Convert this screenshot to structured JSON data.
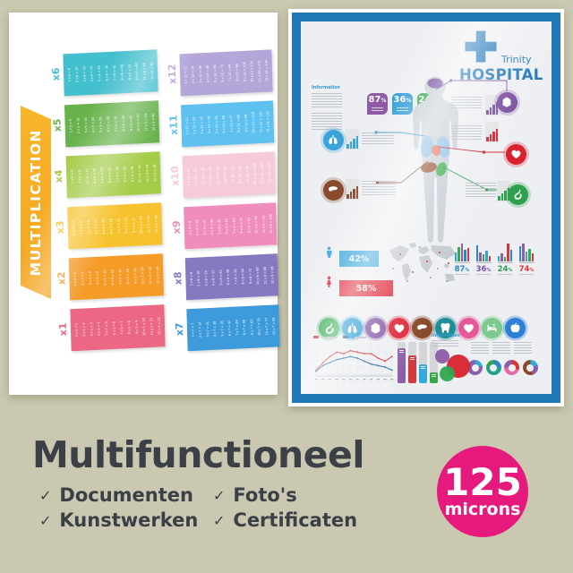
{
  "page": {
    "background": "#cac8b0"
  },
  "left_poster": {
    "title": "MULTIPLICATION",
    "banner_color": "#f5a31f",
    "tables": [
      {
        "label": "x6",
        "color": "#44bfce",
        "equations": [
          "1 x 6 = 6",
          "2 x 6 = 12",
          "3 x 6 = 18",
          "4 x 6 = 24",
          "5 x 6 = 30",
          "6 x 6 = 36",
          "7 x 6 = 42",
          "8 x 6 = 48",
          "9 x 6 = 54",
          "10 x 6 = 60",
          "11 x 6 = 66",
          "12 x 6 = 72"
        ]
      },
      {
        "label": "x5",
        "color": "#68b24c",
        "equations": [
          "1 x 5 = 5",
          "2 x 5 = 10",
          "3 x 5 = 15",
          "4 x 5 = 20",
          "5 x 5 = 25",
          "6 x 5 = 30",
          "7 x 5 = 35",
          "8 x 5 = 40",
          "9 x 5 = 45",
          "10 x 5 = 50",
          "11 x 5 = 55",
          "12 x 5 = 60"
        ]
      },
      {
        "label": "x4",
        "color": "#a5cc49",
        "equations": [
          "1 x 4 = 4",
          "2 x 4 = 8",
          "3 x 4 = 12",
          "4 x 4 = 16",
          "5 x 4 = 20",
          "6 x 4 = 24",
          "7 x 4 = 28",
          "8 x 4 = 32",
          "9 x 4 = 36",
          "10 x 4 = 40",
          "11 x 4 = 44",
          "12 x 4 = 48"
        ]
      },
      {
        "label": "x3",
        "color": "#f6c32e",
        "equations": [
          "1 x 3 = 3",
          "2 x 3 = 6",
          "3 x 3 = 9",
          "4 x 3 = 12",
          "5 x 3 = 15",
          "6 x 3 = 18",
          "7 x 3 = 21",
          "8 x 3 = 24",
          "9 x 3 = 27",
          "10 x 3 = 30",
          "11 x 3 = 33",
          "12 x 3 = 36"
        ]
      },
      {
        "label": "x2",
        "color": "#f49b28",
        "equations": [
          "1 x 2 = 2",
          "2 x 2 = 4",
          "3 x 2 = 6",
          "4 x 2 = 8",
          "5 x 2 = 10",
          "6 x 2 = 12",
          "7 x 2 = 14",
          "8 x 2 = 16",
          "9 x 2 = 18",
          "10 x 2 = 20",
          "11 x 2 = 22",
          "12 x 2 = 24"
        ]
      },
      {
        "label": "x1",
        "color": "#eb6783",
        "equations": [
          "1 x 1 = 1",
          "2 x 1 = 2",
          "3 x 1 = 3",
          "4 x 1 = 4",
          "5 x 1 = 5",
          "6 x 1 = 6",
          "7 x 1 = 7",
          "8 x 1 = 8",
          "9 x 1 = 9",
          "10 x 1 = 10",
          "11 x 1 = 11",
          "12 x 1 = 12"
        ]
      },
      {
        "label": "x12",
        "color": "#b4a6d9",
        "equations": [
          "1 x 12 = 12",
          "2 x 12 = 24",
          "3 x 12 = 36",
          "4 x 12 = 48",
          "5 x 12 = 60",
          "6 x 12 = 72",
          "7 x 12 = 84",
          "8 x 12 = 96",
          "9 x 12 = 108",
          "10 x 12 = 120",
          "11 x 12 = 132",
          "12 x 12 = 144"
        ]
      },
      {
        "label": "x11",
        "color": "#5fc1ef",
        "equations": [
          "1 x 11 = 11",
          "2 x 11 = 22",
          "3 x 11 = 33",
          "4 x 11 = 44",
          "5 x 11 = 55",
          "6 x 11 = 66",
          "7 x 11 = 77",
          "8 x 11 = 88",
          "9 x 11 = 99",
          "10 x 11 = 110",
          "11 x 11 = 121",
          "12 x 11 = 132"
        ]
      },
      {
        "label": "x10",
        "color": "#f6cada",
        "equations": [
          "1 x 10 = 10",
          "2 x 10 = 20",
          "3 x 10 = 30",
          "4 x 10 = 40",
          "5 x 10 = 50",
          "6 x 10 = 60",
          "7 x 10 = 70",
          "8 x 10 = 80",
          "9 x 10 = 90",
          "10 x 10 = 100",
          "11 x 10 = 110",
          "12 x 10 = 120"
        ]
      },
      {
        "label": "x9",
        "color": "#f18cbe",
        "equations": [
          "1 x 9 = 9",
          "2 x 9 = 18",
          "3 x 9 = 27",
          "4 x 9 = 36",
          "5 x 9 = 45",
          "6 x 9 = 54",
          "7 x 9 = 63",
          "8 x 9 = 72",
          "9 x 9 = 81",
          "10 x 9 = 90",
          "11 x 9 = 99",
          "12 x 9 = 108"
        ]
      },
      {
        "label": "x8",
        "color": "#8679c2",
        "equations": [
          "1 x 8 = 8",
          "2 x 8 = 16",
          "3 x 8 = 24",
          "4 x 8 = 32",
          "5 x 8 = 40",
          "6 x 8 = 48",
          "7 x 8 = 56",
          "8 x 8 = 64",
          "9 x 8 = 72",
          "10 x 8 = 80",
          "11 x 8 = 88",
          "12 x 8 = 96"
        ]
      },
      {
        "label": "x7",
        "color": "#3d9bdb",
        "equations": [
          "1 x 7 = 7",
          "2 x 7 = 14",
          "3 x 7 = 21",
          "4 x 7 = 28",
          "5 x 7 = 35",
          "6 x 7 = 42",
          "7 x 7 = 49",
          "8 x 7 = 56",
          "9 x 7 = 63",
          "10 x 7 = 70",
          "11 x 7 = 77",
          "12 x 7 = 84"
        ]
      }
    ]
  },
  "right_poster": {
    "brand": {
      "name": "Trinity",
      "type": "HOSPITAL",
      "color": "#2379ba"
    },
    "info_heading": "Information",
    "stat_badges": [
      {
        "value": "87",
        "unit": "%",
        "color": "#8e5aa6"
      },
      {
        "value": "36",
        "unit": "%",
        "color": "#3ba0d8"
      },
      {
        "value": "24",
        "unit": "%",
        "color": "#33a84a"
      }
    ],
    "gender": [
      {
        "icon": "male",
        "value": "42%",
        "color": "#3fa9dc"
      },
      {
        "icon": "female",
        "value": "58%",
        "color": "#e02b3d"
      }
    ],
    "bar_groups": [
      {
        "value": "87",
        "unit": "%",
        "color": "#2e86c6",
        "bars": [
          10,
          16,
          20,
          13,
          15
        ],
        "bar_colors": [
          "#3aa0d8",
          "#37a94c",
          "#8e5ca8",
          "#2e86c6",
          "#d3393f"
        ]
      },
      {
        "value": "36",
        "unit": "%",
        "color": "#7a55a5",
        "bars": [
          18,
          10,
          8,
          12,
          6
        ],
        "bar_colors": [
          "#2e86c6",
          "#8e5ca8",
          "#37a94c",
          "#3aa0d8",
          "#d3393f"
        ]
      },
      {
        "value": "24",
        "unit": "%",
        "color": "#2fa052",
        "bars": [
          6,
          9,
          5,
          20,
          13
        ],
        "bar_colors": [
          "#3aa0d8",
          "#8e5ca8",
          "#37a94c",
          "#d3393f",
          "#2e86c6"
        ]
      },
      {
        "value": "74",
        "unit": "%",
        "color": "#d3393f",
        "bars": [
          17,
          20,
          11,
          14,
          9
        ],
        "bar_colors": [
          "#2e86c6",
          "#8e5ca8",
          "#3aa0d8",
          "#37a94c",
          "#d3393f"
        ]
      }
    ],
    "organ_callouts": [
      {
        "organ": "lungs",
        "color": "#3aa3dc"
      },
      {
        "organ": "liver",
        "color": "#8a4a2e"
      },
      {
        "organ": "brain",
        "color": "#7a4fa0"
      },
      {
        "organ": "heart-organ",
        "color": "#d8232f"
      },
      {
        "organ": "stomach",
        "color": "#2ea14f"
      }
    ],
    "organ_icons": [
      {
        "name": "stomach",
        "color": "#2fa84f"
      },
      {
        "name": "lungs",
        "color": "#2e9fd4"
      },
      {
        "name": "brain",
        "color": "#8b5fa8"
      },
      {
        "name": "heart-organ",
        "color": "#de2638"
      },
      {
        "name": "liver",
        "color": "#8a4a2c"
      },
      {
        "name": "tooth",
        "color": "#1f8f95"
      },
      {
        "name": "heart",
        "color": "#e45898"
      },
      {
        "name": "bed",
        "color": "#7dc98f"
      },
      {
        "name": "apple",
        "color": "#2b7fd4"
      }
    ],
    "progress_bars": [
      {
        "color": "#8b5fa8",
        "pct": 0.85
      },
      {
        "color": "#d3393f",
        "pct": 0.68
      },
      {
        "color": "#35a8dc",
        "pct": 0.46
      },
      {
        "color": "#37a94c",
        "pct": 0.27
      }
    ],
    "bubbles": [
      "#8e5ca8",
      "#d8232f",
      "#2fa84f"
    ],
    "donuts": [
      {
        "segments": [
          {
            "color": "#35a8dc",
            "pct": 22
          },
          {
            "color": "#8b5fa8",
            "pct": 78
          }
        ]
      },
      {
        "segments": [
          {
            "color": "#2e86c6",
            "pct": 24
          },
          {
            "color": "#23a08c",
            "pct": 56
          },
          {
            "color": "#2fa84f",
            "pct": 20
          }
        ]
      },
      {
        "segments": [
          {
            "color": "#d3393f",
            "pct": 30
          },
          {
            "color": "#e868a8",
            "pct": 45
          },
          {
            "color": "#8b5fa8",
            "pct": 25
          }
        ]
      },
      {
        "segments": [
          {
            "color": "#35a8dc",
            "pct": 20
          },
          {
            "color": "#8b5fa8",
            "pct": 25
          },
          {
            "color": "#8a4a2c",
            "pct": 55
          }
        ]
      }
    ],
    "line_chart": {
      "series": [
        {
          "color": "#d3393f",
          "values": [
            4,
            9,
            13,
            16,
            15,
            17,
            16,
            15,
            15,
            12,
            10,
            13
          ]
        },
        {
          "color": "#2e6da4",
          "values": [
            3,
            7,
            9,
            11,
            12,
            13,
            12,
            10,
            8,
            7,
            6,
            4
          ]
        }
      ]
    }
  },
  "footer": {
    "title": "Multifunctioneel",
    "features": [
      "Documenten",
      "Kunstwerken",
      "Foto's",
      "Certificaten"
    ],
    "badge": {
      "value": "125",
      "unit": "microns",
      "color": "#e61a7c"
    }
  }
}
